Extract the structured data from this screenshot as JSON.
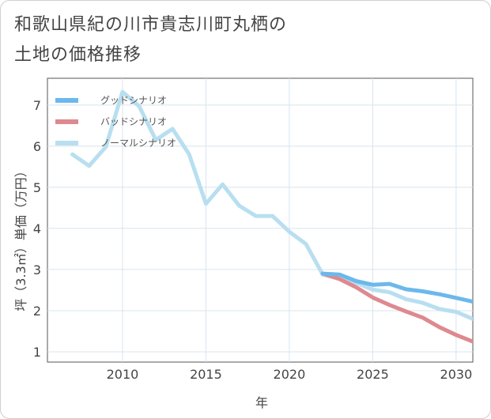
{
  "title_lines": [
    "和歌山県紀の川市貴志川町丸栖の",
    "土地の価格推移"
  ],
  "chart_data": {
    "type": "line",
    "title": "和歌山県紀の川市貴志川町丸栖の土地の価格推移",
    "xlabel": "年",
    "ylabel": "坪（3.3㎡）単価（万円）",
    "xlim": [
      2005.5,
      2031
    ],
    "ylim": [
      0.75,
      7.65
    ],
    "xticks": [
      2010,
      2015,
      2020,
      2025,
      2030
    ],
    "yticks": [
      1,
      2,
      3,
      4,
      5,
      6,
      7
    ],
    "grid": true,
    "legend_position": "top-left",
    "series": [
      {
        "name": "グッドシナリオ",
        "color": "#6cb8ec",
        "x": [
          2022,
          2023,
          2024,
          2025,
          2026,
          2027,
          2028,
          2029,
          2030,
          2031
        ],
        "y": [
          2.9,
          2.88,
          2.72,
          2.63,
          2.65,
          2.52,
          2.47,
          2.4,
          2.31,
          2.22
        ]
      },
      {
        "name": "バッドシナリオ",
        "color": "#dd8a8f",
        "x": [
          2022,
          2023,
          2024,
          2025,
          2026,
          2027,
          2028,
          2029,
          2030,
          2031
        ],
        "y": [
          2.9,
          2.77,
          2.57,
          2.32,
          2.14,
          1.98,
          1.83,
          1.6,
          1.41,
          1.25
        ]
      },
      {
        "name": "ノーマルシナリオ",
        "color": "#b8dff0",
        "x": [
          2007,
          2008,
          2009,
          2010,
          2011,
          2012,
          2013,
          2014,
          2015,
          2016,
          2017,
          2018,
          2019,
          2020,
          2021,
          2022,
          2023,
          2024,
          2025,
          2026,
          2027,
          2028,
          2029,
          2030,
          2031
        ],
        "y": [
          5.8,
          5.52,
          5.98,
          7.32,
          6.97,
          6.15,
          6.42,
          5.8,
          4.6,
          5.07,
          4.55,
          4.3,
          4.3,
          3.92,
          3.62,
          2.88,
          2.78,
          2.68,
          2.51,
          2.45,
          2.28,
          2.19,
          2.04,
          1.97,
          1.8
        ]
      }
    ]
  }
}
